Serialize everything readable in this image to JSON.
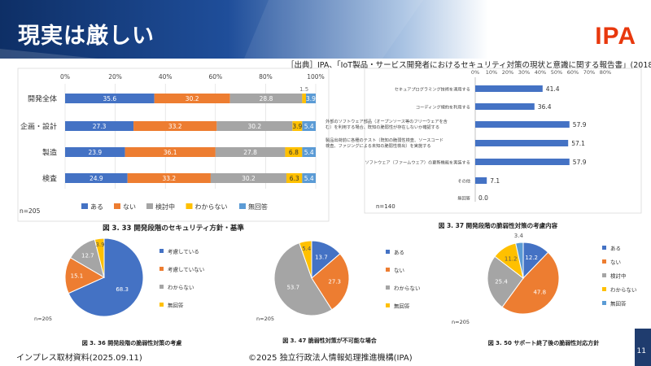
{
  "page": {
    "title": "現実は厳しい",
    "logo": "IPA",
    "source": "［出典］IPA、「IoT製品・サービス開発者におけるセキュリティ対策の現状と意識に関する報告書」(2018年)",
    "footer_left": "インプレス取材資料(2025.09.11)",
    "footer_center": "©2025 独立行政法人情報処理推進機構(IPA)",
    "page_number": "11"
  },
  "chart_data": [
    {
      "type": "bar",
      "stacked": true,
      "orientation": "horizontal",
      "categories": [
        "開発全体",
        "企画・設計",
        "製造",
        "検査"
      ],
      "series": [
        {
          "name": "ある",
          "color": "#4472c4",
          "values": [
            35.6,
            27.3,
            23.9,
            24.9
          ]
        },
        {
          "name": "ない",
          "color": "#ed7d31",
          "values": [
            30.2,
            33.2,
            36.1,
            33.2
          ]
        },
        {
          "name": "検討中",
          "color": "#a5a5a5",
          "values": [
            28.8,
            30.2,
            27.8,
            30.2
          ]
        },
        {
          "name": "わからない",
          "color": "#ffc000",
          "values": [
            1.5,
            3.9,
            6.8,
            6.3
          ]
        },
        {
          "name": "無回答",
          "color": "#5b9bd5",
          "values": [
            3.9,
            5.4,
            5.4,
            5.4
          ]
        }
      ],
      "xticks": [
        "0%",
        "20%",
        "40%",
        "60%",
        "80%",
        "100%"
      ],
      "xlim": [
        0,
        100
      ],
      "n_label": "n=205",
      "caption": "図 3. 33 開発段階のセキュリティ方針・基準"
    },
    {
      "type": "bar",
      "orientation": "horizontal",
      "categories": [
        "セキュアプログラミング技術を適用する",
        "コーディング規約を利用する",
        "外部のソフトウェア部品（オープンソース等のフリーウェアを含む）を利用する場合、既知の脆弱性が存在しないか確認する",
        "製品出荷前に各種のテスト（既知の脆弱性検査、ソースコード検査、ファジングによる未知の脆弱性検出）を実施する",
        "ソフトウェア（ファームウェア）の更新機能を実装する",
        "その他",
        "無回答"
      ],
      "values": [
        41.4,
        36.4,
        57.9,
        57.1,
        57.9,
        7.1,
        0.0
      ],
      "value_labels": [
        "41.4",
        "36.4",
        "57.9",
        "57.1",
        "57.9",
        "7.1",
        "0.0"
      ],
      "color": "#4472c4",
      "xticks": [
        "0%",
        "10%",
        "20%",
        "30%",
        "40%",
        "50%",
        "60%",
        "70%",
        "80%"
      ],
      "xlim": [
        0,
        80
      ],
      "n_label": "n=140",
      "caption": "図 3. 37 開発段階の脆弱性対策の考慮内容"
    },
    {
      "type": "pie",
      "labels": [
        "考慮している",
        "考慮していない",
        "わからない",
        "無回答"
      ],
      "values": [
        68.3,
        15.1,
        12.7,
        3.9
      ],
      "value_labels": [
        "68.3",
        "15.1",
        "12.7",
        "3.9"
      ],
      "colors": [
        "#4472c4",
        "#ed7d31",
        "#a5a5a5",
        "#ffc000"
      ],
      "n_label": "n=205",
      "caption": "図 3. 36 開発段階の脆弱性対策の考慮"
    },
    {
      "type": "pie",
      "labels": [
        "ある",
        "ない",
        "わからない",
        "無回答"
      ],
      "values": [
        13.7,
        27.3,
        53.7,
        5.4
      ],
      "value_labels": [
        "13.7",
        "27.3",
        "53.7",
        "5.4"
      ],
      "colors": [
        "#4472c4",
        "#ed7d31",
        "#a5a5a5",
        "#ffc000"
      ],
      "n_label": "n=205",
      "caption": "図 3. 47 脆弱性対策が不可能な場合"
    },
    {
      "type": "pie",
      "labels": [
        "ある",
        "ない",
        "検討中",
        "わからない",
        "無回答"
      ],
      "values": [
        12.2,
        47.8,
        25.4,
        11.2,
        3.4
      ],
      "value_labels": [
        "12.2",
        "47.8",
        "25.4",
        "11.2",
        "3.4"
      ],
      "colors": [
        "#4472c4",
        "#ed7d31",
        "#a5a5a5",
        "#ffc000",
        "#5b9bd5"
      ],
      "n_label": "n=205",
      "caption": "図 3. 50 サポート終了後の脆弱性対応方針"
    }
  ]
}
